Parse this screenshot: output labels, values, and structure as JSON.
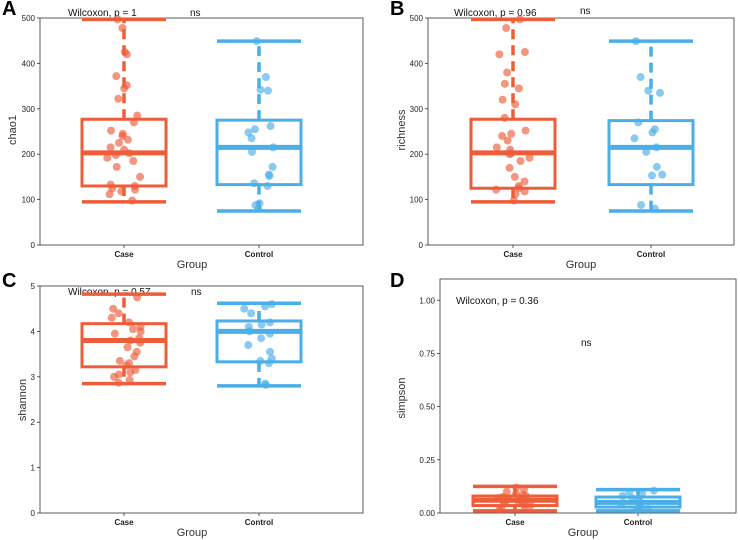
{
  "chart_data": [
    {
      "id": "A",
      "type": "box",
      "panel_label": "A",
      "ylabel": "chao1",
      "xlabel": "Group",
      "categories": [
        "Case",
        "Control"
      ],
      "colors": [
        "#EE5D3A",
        "#4AAEE8"
      ],
      "ylim": [
        0,
        500
      ],
      "yticks": [
        0,
        100,
        200,
        300,
        400,
        500
      ],
      "tick_labels": [
        "0",
        "100",
        "200",
        "300",
        "400",
        "500"
      ],
      "test_label": "Wilcoxon, p = 1",
      "sig_label": "ns",
      "boxes": [
        {
          "min": 95,
          "q1": 130,
          "median": 203,
          "q3": 277,
          "max": 497
        },
        {
          "min": 75,
          "q1": 133,
          "median": 215,
          "q3": 275,
          "max": 449
        }
      ],
      "points": [
        [
          98,
          112,
          118,
          122,
          125,
          130,
          133,
          150,
          172,
          185,
          192,
          198,
          202,
          210,
          215,
          225,
          232,
          240,
          245,
          252,
          270,
          285,
          322,
          345,
          352,
          372,
          420,
          425,
          478,
          497
        ],
        [
          80,
          88,
          92,
          130,
          136,
          152,
          155,
          172,
          205,
          215,
          235,
          248,
          255,
          262,
          340,
          342,
          370,
          449
        ]
      ]
    },
    {
      "id": "B",
      "type": "box",
      "panel_label": "B",
      "ylabel": "richness",
      "xlabel": "Group",
      "categories": [
        "Case",
        "Control"
      ],
      "colors": [
        "#EE5D3A",
        "#4AAEE8"
      ],
      "ylim": [
        0,
        500
      ],
      "yticks": [
        0,
        100,
        200,
        300,
        400,
        500
      ],
      "tick_labels": [
        "0",
        "100",
        "200",
        "300",
        "400",
        "500"
      ],
      "test_label": "Wilcoxon, p = 0.96",
      "sig_label": "ns",
      "boxes": [
        {
          "min": 95,
          "q1": 125,
          "median": 203,
          "q3": 277,
          "max": 497
        },
        {
          "min": 75,
          "q1": 133,
          "median": 215,
          "q3": 274,
          "max": 449
        }
      ],
      "points": [
        [
          98,
          112,
          118,
          122,
          125,
          130,
          140,
          150,
          170,
          185,
          192,
          200,
          202,
          210,
          215,
          230,
          240,
          245,
          252,
          280,
          310,
          320,
          345,
          355,
          380,
          420,
          425,
          478,
          497
        ],
        [
          80,
          88,
          153,
          155,
          172,
          205,
          215,
          235,
          248,
          255,
          270,
          335,
          340,
          370,
          449
        ]
      ]
    },
    {
      "id": "C",
      "type": "box",
      "panel_label": "C",
      "ylabel": "shannon",
      "xlabel": "Group",
      "categories": [
        "Case",
        "Control"
      ],
      "colors": [
        "#EE5D3A",
        "#4AAEE8"
      ],
      "ylim": [
        0,
        5
      ],
      "yticks": [
        0,
        1,
        2,
        3,
        4,
        5
      ],
      "tick_labels": [
        "0",
        "1",
        "2",
        "3",
        "4",
        "5"
      ],
      "test_label": "Wilcoxon, p = 0.57",
      "sig_label": "ns",
      "boxes": [
        {
          "min": 2.85,
          "q1": 3.22,
          "median": 3.8,
          "q3": 4.17,
          "max": 4.82
        },
        {
          "min": 2.8,
          "q1": 3.33,
          "median": 4.0,
          "q3": 4.23,
          "max": 4.62
        }
      ],
      "points": [
        [
          2.87,
          2.93,
          3.0,
          3.05,
          3.1,
          3.15,
          3.25,
          3.3,
          3.35,
          3.45,
          3.55,
          3.65,
          3.75,
          3.8,
          3.85,
          3.95,
          4.0,
          4.05,
          4.1,
          4.2,
          4.3,
          4.4,
          4.5,
          4.75
        ],
        [
          2.82,
          2.85,
          3.3,
          3.35,
          3.4,
          3.55,
          3.7,
          3.85,
          3.95,
          4.0,
          4.1,
          4.15,
          4.2,
          4.4,
          4.5,
          4.55,
          4.6
        ]
      ]
    },
    {
      "id": "D",
      "type": "box",
      "panel_label": "D",
      "ylabel": "simpson",
      "xlabel": "Group",
      "categories": [
        "Case",
        "Control"
      ],
      "colors": [
        "#EE5D3A",
        "#4AAEE8"
      ],
      "ylim": [
        0,
        1.1
      ],
      "yticks": [
        0,
        0.25,
        0.5,
        0.75,
        1.0
      ],
      "tick_labels": [
        "0.00",
        "0.25",
        "0.50",
        "0.75",
        "1.00"
      ],
      "test_label": "Wilcoxon, p = 0.36",
      "sig_label": "ns",
      "boxes": [
        {
          "min": 0.01,
          "q1": 0.035,
          "median": 0.06,
          "q3": 0.08,
          "max": 0.125
        },
        {
          "min": 0.01,
          "q1": 0.028,
          "median": 0.05,
          "q3": 0.075,
          "max": 0.11
        }
      ],
      "points": [
        [
          0.015,
          0.02,
          0.03,
          0.035,
          0.04,
          0.045,
          0.05,
          0.055,
          0.06,
          0.065,
          0.07,
          0.075,
          0.08,
          0.085,
          0.09,
          0.1,
          0.11,
          0.12
        ],
        [
          0.015,
          0.02,
          0.025,
          0.03,
          0.04,
          0.05,
          0.06,
          0.07,
          0.08,
          0.09,
          0.1,
          0.105
        ]
      ]
    }
  ]
}
